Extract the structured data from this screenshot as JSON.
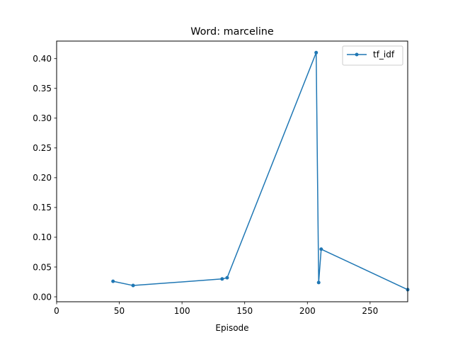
{
  "chart_data": {
    "type": "line",
    "title": "Word: marceline",
    "xlabel": "Episode",
    "ylabel": "",
    "xlim": [
      0,
      280
    ],
    "ylim": [
      -0.0083,
      0.4294
    ],
    "xticks": [
      0,
      50,
      100,
      150,
      200,
      250
    ],
    "yticks": [
      0.0,
      0.05,
      0.1,
      0.15,
      0.2,
      0.25,
      0.3,
      0.35,
      0.4
    ],
    "xtick_labels": [
      "0",
      "50",
      "100",
      "150",
      "200",
      "250"
    ],
    "ytick_labels": [
      "0.00",
      "0.05",
      "0.10",
      "0.15",
      "0.20",
      "0.25",
      "0.30",
      "0.35",
      "0.40"
    ],
    "grid": false,
    "legend_position": "top-right",
    "series": [
      {
        "name": "tf_idf",
        "color": "#1f77b4",
        "marker": "circle",
        "x": [
          45,
          61,
          132,
          136,
          207,
          209,
          211,
          280
        ],
        "y": [
          0.026,
          0.019,
          0.03,
          0.032,
          0.41,
          0.024,
          0.08,
          0.012
        ]
      }
    ]
  }
}
